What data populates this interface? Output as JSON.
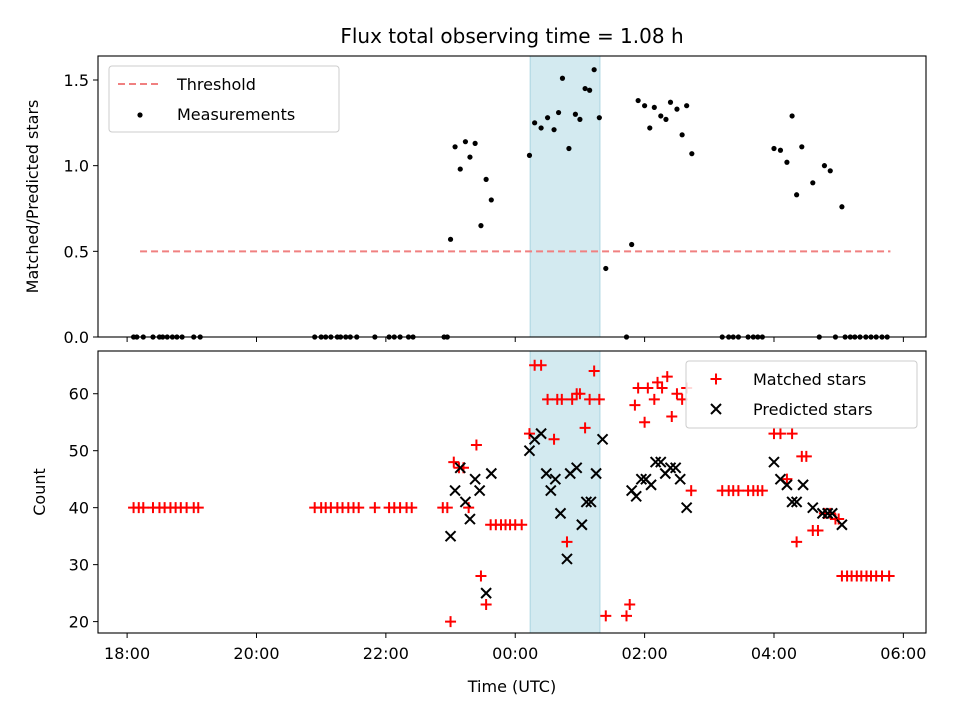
{
  "chart_data": [
    {
      "type": "scatter",
      "title": "Flux total observing time = 1.08 h",
      "xlabel": "",
      "ylabel": "Matched/Predicted stars",
      "x_unit": "hours since 00:00 UTC",
      "xlim": [
        -6.45,
        6.35
      ],
      "ylim": [
        0,
        1.64
      ],
      "yticks": [
        "0.0",
        "0.5",
        "1.0",
        "1.5"
      ],
      "ytick_values": [
        0,
        0.5,
        1.0,
        1.5
      ],
      "xtick_values": [
        -6,
        -4,
        -2,
        0,
        2,
        4,
        6
      ],
      "highlight_span": [
        0.23,
        1.31
      ],
      "highlight_color": "#d3eaf0",
      "legend_position": "upper left",
      "threshold": {
        "name": "Threshold",
        "value": 0.5,
        "x_range": [
          -5.8,
          5.8
        ],
        "color": "#f08080"
      },
      "series": [
        {
          "name": "Measurements",
          "marker": "dot",
          "color": "#000000",
          "points": [
            [
              -5.9,
              0
            ],
            [
              -5.85,
              0
            ],
            [
              -5.75,
              0
            ],
            [
              -5.6,
              0
            ],
            [
              -5.5,
              0
            ],
            [
              -5.45,
              0
            ],
            [
              -5.38,
              0
            ],
            [
              -5.3,
              0
            ],
            [
              -5.23,
              0
            ],
            [
              -5.15,
              0
            ],
            [
              -4.97,
              0
            ],
            [
              -4.87,
              0
            ],
            [
              -3.1,
              0
            ],
            [
              -3.0,
              0
            ],
            [
              -2.93,
              0
            ],
            [
              -2.85,
              0
            ],
            [
              -2.75,
              0
            ],
            [
              -2.7,
              0
            ],
            [
              -2.62,
              0
            ],
            [
              -2.55,
              0
            ],
            [
              -2.45,
              0
            ],
            [
              -2.17,
              0
            ],
            [
              -1.95,
              0
            ],
            [
              -1.87,
              0
            ],
            [
              -1.78,
              0
            ],
            [
              -1.65,
              0
            ],
            [
              -1.58,
              0
            ],
            [
              -1.1,
              0
            ],
            [
              -1.05,
              0
            ],
            [
              -1.0,
              0.57
            ],
            [
              -0.93,
              1.11
            ],
            [
              -0.85,
              0.98
            ],
            [
              -0.77,
              1.14
            ],
            [
              -0.7,
              1.05
            ],
            [
              -0.62,
              1.13
            ],
            [
              -0.53,
              0.65
            ],
            [
              -0.45,
              0.92
            ],
            [
              -0.37,
              0.8
            ],
            [
              0.22,
              1.06
            ],
            [
              0.3,
              1.25
            ],
            [
              0.4,
              1.22
            ],
            [
              0.5,
              1.28
            ],
            [
              0.6,
              1.21
            ],
            [
              0.67,
              1.31
            ],
            [
              0.73,
              1.51
            ],
            [
              0.83,
              1.1
            ],
            [
              0.93,
              1.3
            ],
            [
              1.0,
              1.27
            ],
            [
              1.08,
              1.45
            ],
            [
              1.15,
              1.44
            ],
            [
              1.22,
              1.56
            ],
            [
              1.3,
              1.28
            ],
            [
              1.4,
              0.4
            ],
            [
              1.72,
              0
            ],
            [
              1.8,
              0.54
            ],
            [
              1.9,
              1.38
            ],
            [
              2.0,
              1.35
            ],
            [
              2.08,
              1.22
            ],
            [
              2.15,
              1.34
            ],
            [
              2.25,
              1.29
            ],
            [
              2.33,
              1.27
            ],
            [
              2.4,
              1.37
            ],
            [
              2.5,
              1.33
            ],
            [
              2.58,
              1.18
            ],
            [
              2.65,
              1.35
            ],
            [
              2.73,
              1.07
            ],
            [
              3.2,
              0
            ],
            [
              3.3,
              0
            ],
            [
              3.37,
              0
            ],
            [
              3.45,
              0
            ],
            [
              3.6,
              0
            ],
            [
              3.68,
              0
            ],
            [
              3.75,
              0
            ],
            [
              3.82,
              0
            ],
            [
              4.0,
              1.1
            ],
            [
              4.1,
              1.09
            ],
            [
              4.2,
              1.02
            ],
            [
              4.28,
              1.29
            ],
            [
              4.35,
              0.83
            ],
            [
              4.43,
              1.11
            ],
            [
              4.6,
              0.9
            ],
            [
              4.7,
              0
            ],
            [
              4.78,
              1.0
            ],
            [
              4.87,
              0.97
            ],
            [
              4.95,
              0
            ],
            [
              5.05,
              0.76
            ],
            [
              5.1,
              0
            ],
            [
              5.18,
              0
            ],
            [
              5.25,
              0
            ],
            [
              5.33,
              0
            ],
            [
              5.42,
              0
            ],
            [
              5.5,
              0
            ],
            [
              5.58,
              0
            ],
            [
              5.67,
              0
            ],
            [
              5.75,
              0
            ]
          ]
        }
      ]
    },
    {
      "type": "scatter",
      "title": "",
      "xlabel": "Time (UTC)",
      "ylabel": "Count",
      "x_unit": "hours since 00:00 UTC",
      "xlim": [
        -6.45,
        6.35
      ],
      "ylim": [
        18,
        67.5
      ],
      "yticks": [
        "20",
        "30",
        "40",
        "50",
        "60"
      ],
      "ytick_values": [
        20,
        30,
        40,
        50,
        60
      ],
      "xticks": [
        "18:00",
        "20:00",
        "22:00",
        "00:00",
        "02:00",
        "04:00",
        "06:00"
      ],
      "xtick_values": [
        -6,
        -4,
        -2,
        0,
        2,
        4,
        6
      ],
      "highlight_span": [
        0.23,
        1.31
      ],
      "highlight_color": "#d3eaf0",
      "legend_position": "upper right",
      "series": [
        {
          "name": "Matched stars",
          "marker": "plus",
          "color": "#ff0000",
          "points": [
            [
              -5.9,
              40
            ],
            [
              -5.82,
              40
            ],
            [
              -5.75,
              40
            ],
            [
              -5.6,
              40
            ],
            [
              -5.5,
              40
            ],
            [
              -5.42,
              40
            ],
            [
              -5.33,
              40
            ],
            [
              -5.25,
              40
            ],
            [
              -5.17,
              40
            ],
            [
              -5.08,
              40
            ],
            [
              -4.97,
              40
            ],
            [
              -4.9,
              40
            ],
            [
              -3.1,
              40
            ],
            [
              -3.0,
              40
            ],
            [
              -2.93,
              40
            ],
            [
              -2.85,
              40
            ],
            [
              -2.75,
              40
            ],
            [
              -2.67,
              40
            ],
            [
              -2.58,
              40
            ],
            [
              -2.5,
              40
            ],
            [
              -2.42,
              40
            ],
            [
              -2.17,
              40
            ],
            [
              -1.95,
              40
            ],
            [
              -1.87,
              40
            ],
            [
              -1.78,
              40
            ],
            [
              -1.68,
              40
            ],
            [
              -1.6,
              40
            ],
            [
              -1.12,
              40
            ],
            [
              -1.05,
              40
            ],
            [
              -1.0,
              20
            ],
            [
              -0.95,
              48
            ],
            [
              -0.87,
              47
            ],
            [
              -0.8,
              47
            ],
            [
              -0.72,
              40
            ],
            [
              -0.6,
              51
            ],
            [
              -0.53,
              28
            ],
            [
              -0.45,
              23
            ],
            [
              -0.38,
              37
            ],
            [
              -0.3,
              37
            ],
            [
              -0.22,
              37
            ],
            [
              -0.15,
              37
            ],
            [
              -0.08,
              37
            ],
            [
              0.0,
              37
            ],
            [
              0.1,
              37
            ],
            [
              0.22,
              53
            ],
            [
              0.3,
              65
            ],
            [
              0.4,
              65
            ],
            [
              0.5,
              59
            ],
            [
              0.6,
              52
            ],
            [
              0.65,
              59
            ],
            [
              0.72,
              59
            ],
            [
              0.8,
              34
            ],
            [
              0.88,
              59
            ],
            [
              0.95,
              60
            ],
            [
              1.0,
              60
            ],
            [
              1.08,
              54
            ],
            [
              1.15,
              59
            ],
            [
              1.22,
              64
            ],
            [
              1.3,
              59
            ],
            [
              1.4,
              21
            ],
            [
              1.72,
              21
            ],
            [
              1.77,
              23
            ],
            [
              1.85,
              58
            ],
            [
              1.9,
              61
            ],
            [
              2.0,
              55
            ],
            [
              2.05,
              61
            ],
            [
              2.15,
              59
            ],
            [
              2.2,
              62
            ],
            [
              2.27,
              61
            ],
            [
              2.35,
              63
            ],
            [
              2.42,
              56
            ],
            [
              2.5,
              60
            ],
            [
              2.58,
              59
            ],
            [
              2.65,
              61
            ],
            [
              2.72,
              43
            ],
            [
              3.2,
              43
            ],
            [
              3.3,
              43
            ],
            [
              3.37,
              43
            ],
            [
              3.45,
              43
            ],
            [
              3.6,
              43
            ],
            [
              3.68,
              43
            ],
            [
              3.75,
              43
            ],
            [
              3.82,
              43
            ],
            [
              4.0,
              53
            ],
            [
              4.1,
              53
            ],
            [
              4.2,
              45
            ],
            [
              4.28,
              53
            ],
            [
              4.35,
              34
            ],
            [
              4.43,
              49
            ],
            [
              4.5,
              49
            ],
            [
              4.6,
              36
            ],
            [
              4.68,
              36
            ],
            [
              4.78,
              39
            ],
            [
              4.87,
              39
            ],
            [
              4.95,
              38
            ],
            [
              5.0,
              38
            ],
            [
              5.05,
              28
            ],
            [
              5.13,
              28
            ],
            [
              5.2,
              28
            ],
            [
              5.28,
              28
            ],
            [
              5.35,
              28
            ],
            [
              5.43,
              28
            ],
            [
              5.5,
              28
            ],
            [
              5.58,
              28
            ],
            [
              5.67,
              28
            ],
            [
              5.78,
              28
            ]
          ]
        },
        {
          "name": "Predicted stars",
          "marker": "x",
          "color": "#000000",
          "points": [
            [
              -1.0,
              35
            ],
            [
              -0.93,
              43
            ],
            [
              -0.85,
              47
            ],
            [
              -0.77,
              41
            ],
            [
              -0.7,
              38
            ],
            [
              -0.62,
              45
            ],
            [
              -0.55,
              43
            ],
            [
              -0.45,
              25
            ],
            [
              -0.37,
              46
            ],
            [
              0.22,
              50
            ],
            [
              0.3,
              52
            ],
            [
              0.4,
              53
            ],
            [
              0.48,
              46
            ],
            [
              0.55,
              43
            ],
            [
              0.62,
              45
            ],
            [
              0.7,
              39
            ],
            [
              0.8,
              31
            ],
            [
              0.85,
              46
            ],
            [
              0.95,
              47
            ],
            [
              1.03,
              37
            ],
            [
              1.1,
              41
            ],
            [
              1.17,
              41
            ],
            [
              1.25,
              46
            ],
            [
              1.35,
              52
            ],
            [
              1.8,
              43
            ],
            [
              1.87,
              42
            ],
            [
              1.95,
              45
            ],
            [
              2.02,
              45
            ],
            [
              2.1,
              44
            ],
            [
              2.17,
              48
            ],
            [
              2.25,
              48
            ],
            [
              2.32,
              46
            ],
            [
              2.4,
              47
            ],
            [
              2.48,
              47
            ],
            [
              2.55,
              45
            ],
            [
              2.65,
              40
            ],
            [
              4.0,
              48
            ],
            [
              4.1,
              45
            ],
            [
              4.2,
              44
            ],
            [
              4.28,
              41
            ],
            [
              4.35,
              41
            ],
            [
              4.45,
              44
            ],
            [
              4.6,
              40
            ],
            [
              4.75,
              39
            ],
            [
              4.83,
              39
            ],
            [
              4.9,
              39
            ],
            [
              5.05,
              37
            ]
          ]
        }
      ]
    }
  ]
}
